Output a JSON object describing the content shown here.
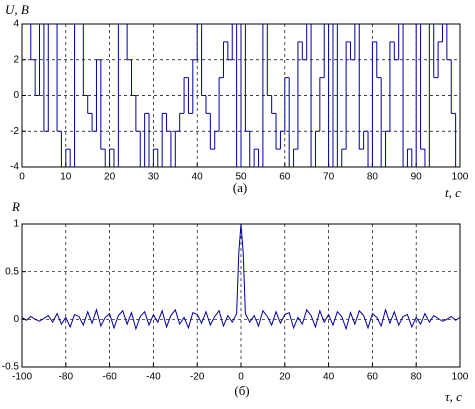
{
  "chart_data": [
    {
      "type": "step",
      "ylabel": "U, B",
      "caption": "(a)",
      "xlabel": "t, c",
      "color": "#0000a0",
      "x": [
        0,
        1,
        2,
        3,
        4,
        5,
        6,
        7,
        8,
        9,
        10,
        11,
        12,
        13,
        14,
        15,
        16,
        17,
        18,
        19,
        20,
        21,
        22,
        23,
        24,
        25,
        26,
        27,
        28,
        29,
        30,
        31,
        32,
        33,
        34,
        35,
        36,
        37,
        38,
        39,
        40,
        41,
        42,
        43,
        44,
        45,
        46,
        47,
        48,
        49,
        50,
        51,
        52,
        53,
        54,
        55,
        56,
        57,
        58,
        59,
        60,
        61,
        62,
        63,
        64,
        65,
        66,
        67,
        68,
        69,
        70,
        71,
        72,
        73,
        74,
        75,
        76,
        77,
        78,
        79,
        80,
        81,
        82,
        83,
        84,
        85,
        86,
        87,
        88,
        89,
        90,
        91,
        92,
        93,
        94,
        95,
        96,
        97,
        98,
        99,
        100
      ],
      "values": [
        4,
        4,
        2,
        0,
        4,
        -2,
        4,
        4,
        -2,
        -4,
        -3,
        -4,
        4,
        4,
        0,
        -1,
        -2,
        2,
        -3,
        -4,
        -3,
        -4,
        4,
        4,
        2,
        0,
        -2,
        -4,
        -1,
        -4,
        -3,
        -4,
        -1,
        -2,
        -4,
        -2,
        -1,
        1,
        -1,
        2,
        4,
        0,
        -1,
        -3,
        -2,
        1,
        3,
        2,
        4,
        -4,
        4,
        -2,
        -4,
        -3,
        -4,
        4,
        0,
        -1,
        -3,
        -2,
        1,
        -4,
        -3,
        3,
        2,
        4,
        -4,
        -2,
        1,
        4,
        -4,
        4,
        -4,
        -3,
        3,
        2,
        4,
        -3,
        -2,
        -4,
        3,
        1,
        -4,
        -2,
        3,
        2,
        4,
        -4,
        -3,
        -4,
        4,
        -3,
        -4,
        4,
        1,
        3,
        4,
        2,
        -1,
        -4,
        -4
      ],
      "xlim": [
        0,
        100
      ],
      "ylim": [
        -4,
        4
      ],
      "xticks": [
        0,
        10,
        20,
        30,
        40,
        50,
        60,
        70,
        80,
        90,
        100
      ],
      "yticks": [
        -4,
        -2,
        0,
        2,
        4
      ],
      "grid": true
    },
    {
      "type": "line",
      "ylabel": "R",
      "caption": "(б)",
      "xlabel": "τ, c",
      "color": "#0000a0",
      "x": [
        -100,
        -98,
        -96,
        -94,
        -92,
        -90,
        -88,
        -86,
        -84,
        -82,
        -80,
        -78,
        -76,
        -74,
        -72,
        -70,
        -68,
        -66,
        -64,
        -62,
        -60,
        -58,
        -56,
        -54,
        -52,
        -50,
        -48,
        -46,
        -44,
        -42,
        -40,
        -38,
        -36,
        -34,
        -32,
        -30,
        -28,
        -26,
        -24,
        -22,
        -20,
        -18,
        -16,
        -14,
        -12,
        -10,
        -8,
        -6,
        -4,
        -2,
        -1,
        0,
        1,
        2,
        4,
        6,
        8,
        10,
        12,
        14,
        16,
        18,
        20,
        22,
        24,
        26,
        28,
        30,
        32,
        34,
        36,
        38,
        40,
        42,
        44,
        46,
        48,
        50,
        52,
        54,
        56,
        58,
        60,
        62,
        64,
        66,
        68,
        70,
        72,
        74,
        76,
        78,
        80,
        82,
        84,
        86,
        88,
        90,
        92,
        94,
        96,
        98,
        100
      ],
      "values": [
        0.02,
        -0.01,
        0.03,
        0,
        -0.02,
        0.01,
        0.04,
        -0.03,
        0.06,
        -0.05,
        0.02,
        -0.08,
        0.05,
        0.03,
        -0.06,
        0.08,
        -0.04,
        0.1,
        -0.07,
        0.02,
        0.06,
        -0.09,
        0.04,
        0.09,
        -0.05,
        0.07,
        -0.1,
        0.03,
        0.08,
        -0.06,
        0.05,
        -0.03,
        0.09,
        -0.08,
        0.04,
        0.1,
        -0.05,
        0.02,
        -0.09,
        0.07,
        0.05,
        -0.04,
        0.08,
        -0.06,
        0.03,
        0.09,
        -0.07,
        0.04,
        -0.03,
        0.06,
        0.7,
        1,
        0.7,
        0.06,
        -0.03,
        0.04,
        -0.07,
        0.09,
        0.03,
        -0.06,
        0.08,
        -0.04,
        0.05,
        0.07,
        -0.09,
        0.02,
        -0.05,
        0.1,
        0.04,
        -0.08,
        0.09,
        -0.03,
        0.05,
        -0.06,
        0.08,
        0.03,
        -0.1,
        0.07,
        -0.05,
        0.09,
        0.04,
        -0.09,
        0.06,
        0.02,
        -0.07,
        0.1,
        -0.04,
        0.08,
        -0.06,
        0.03,
        0.05,
        -0.08,
        0.02,
        -0.05,
        0.06,
        -0.03,
        0.04,
        0.01,
        -0.02,
        0,
        0.03,
        -0.01,
        0.02
      ],
      "xlim": [
        -100,
        100
      ],
      "ylim": [
        -0.5,
        1
      ],
      "xticks": [
        -100,
        -80,
        -60,
        -40,
        -20,
        0,
        20,
        40,
        60,
        80,
        100
      ],
      "yticks": [
        -0.5,
        0,
        0.5,
        1
      ],
      "grid": true
    }
  ]
}
